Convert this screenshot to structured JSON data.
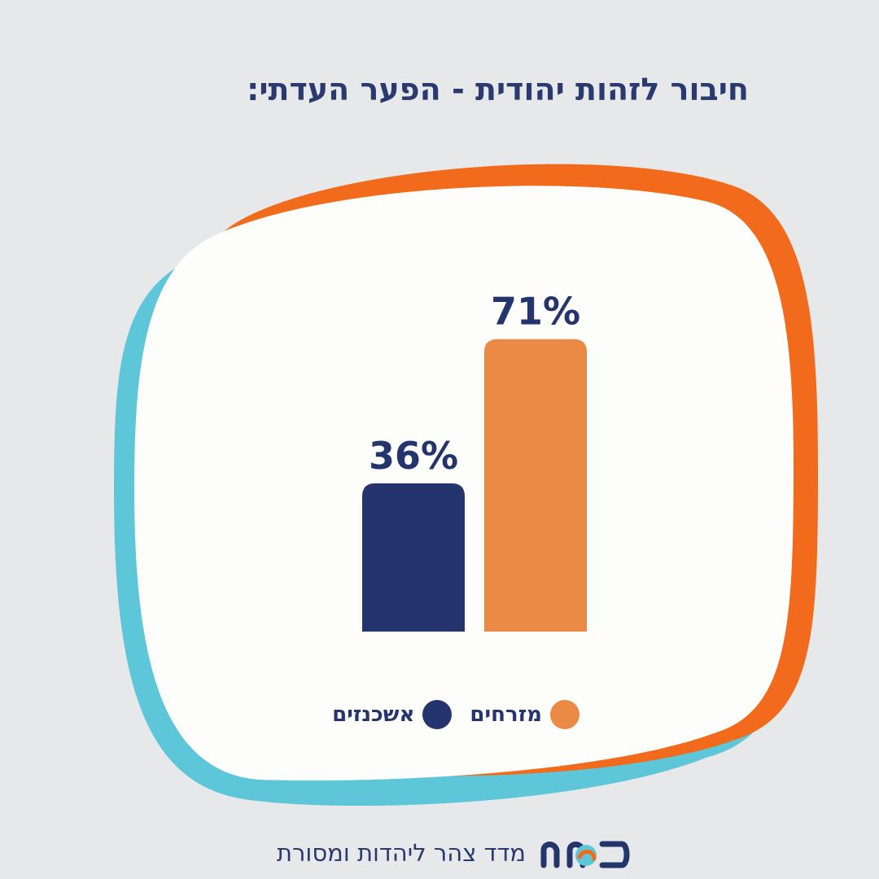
{
  "title": "חיבור לזהות יהודית - הפער העדתי:",
  "chart_data": {
    "type": "bar",
    "categories": [
      "אשכנזים",
      "מזרחים"
    ],
    "values": [
      36,
      71
    ],
    "value_labels": [
      "36%",
      "71%"
    ],
    "colors": [
      "#25346d",
      "#ea8a44"
    ],
    "ylim": [
      0,
      100
    ],
    "legend": [
      {
        "label": "מזרחים",
        "color": "#ea8a44"
      },
      {
        "label": "אשכנזים",
        "color": "#25346d"
      }
    ],
    "legend_position": "bottom",
    "grid": false
  },
  "footer": {
    "text": "מדד צהר ליהדות ומסורת",
    "logo_text": "משב"
  },
  "colors": {
    "background": "#e6e8e9",
    "blob_fill": "#fdfdfb",
    "blob_orange": "#f26a1b",
    "blob_teal": "#5ec6d9",
    "text_navy": "#2a3a6e"
  }
}
